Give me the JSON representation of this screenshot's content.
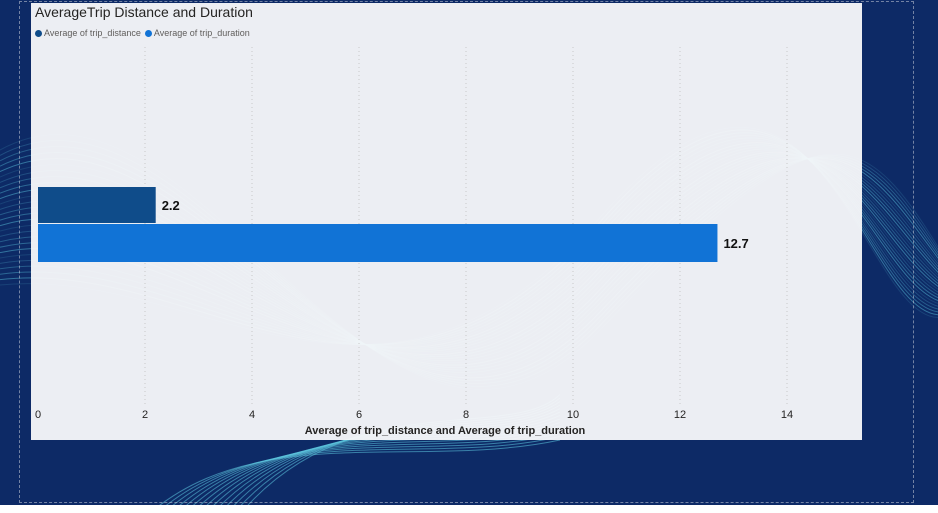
{
  "chart_data": {
    "type": "bar",
    "orientation": "horizontal",
    "title": "AverageTrip Distance and Duration",
    "xlabel": "Average of trip_distance and Average of trip_duration",
    "ylabel": "",
    "xlim": [
      0,
      15
    ],
    "xticks": [
      0,
      2,
      4,
      6,
      8,
      10,
      12,
      14
    ],
    "grid": "vertical dotted",
    "legend_position": "top-left",
    "series": [
      {
        "name": "Average of trip_distance",
        "value": 2.2,
        "label": "2.2",
        "color": "#0f4c8a"
      },
      {
        "name": "Average of trip_duration",
        "value": 12.7,
        "label": "12.7",
        "color": "#1173d6"
      }
    ]
  },
  "colors": {
    "background": "#0d2a66",
    "panel": "#f6f7f9",
    "wave": "#5ec8e0"
  }
}
